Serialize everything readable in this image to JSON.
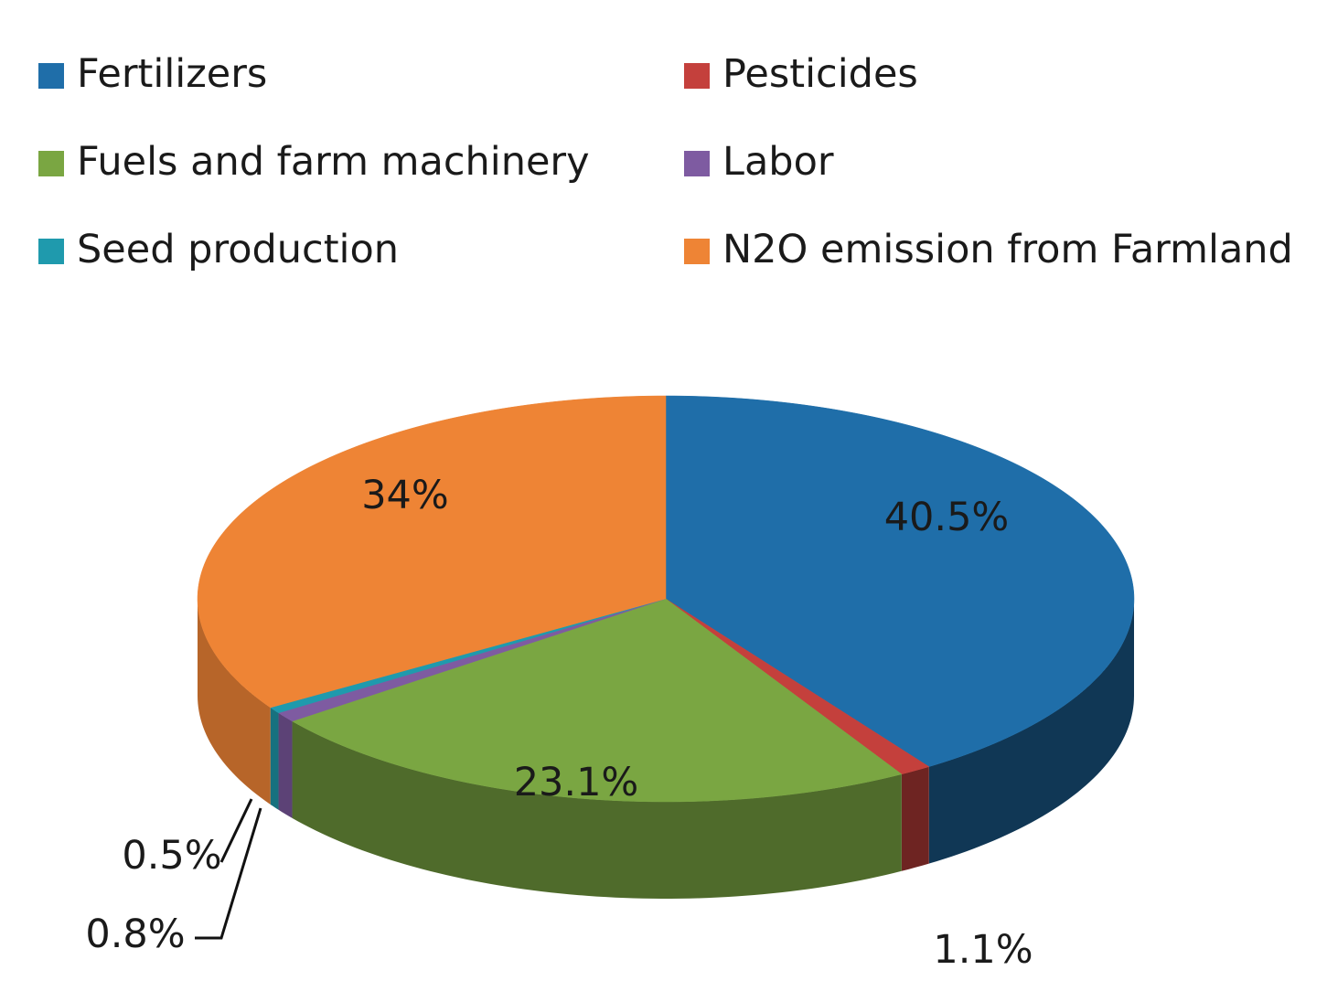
{
  "chart_data": {
    "type": "pie",
    "title": "",
    "legend_position": "top",
    "slices": [
      {
        "label": "Fertilizers",
        "value": 40.5,
        "value_label": "40.5%",
        "color": "#1f6ea9"
      },
      {
        "label": "Pesticides",
        "value": 1.1,
        "value_label": "1.1%",
        "color": "#c4403c"
      },
      {
        "label": "Fuels and farm machinery",
        "value": 23.1,
        "value_label": "23.1%",
        "color": "#7aa642"
      },
      {
        "label": "Labor",
        "value": 0.8,
        "value_label": "0.8%",
        "color": "#7e5ba1"
      },
      {
        "label": "Seed production",
        "value": 0.5,
        "value_label": "0.5%",
        "color": "#1f9aad"
      },
      {
        "label": "N2O emission from Farmland",
        "value": 34,
        "value_label": "34%",
        "color": "#ee8435"
      }
    ]
  }
}
